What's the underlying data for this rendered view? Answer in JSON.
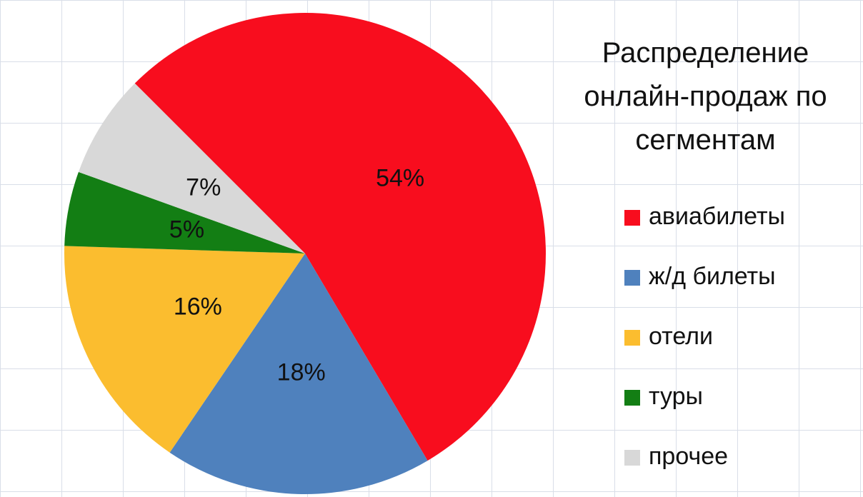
{
  "chart_data": {
    "type": "pie",
    "title": "Распределение онлайн-продаж по сегментам",
    "categories": [
      "авиабилеты",
      "ж/д билеты",
      "отели",
      "туры",
      "прочее"
    ],
    "values": [
      54,
      18,
      16,
      5,
      7
    ],
    "value_labels": [
      "54%",
      "18%",
      "16%",
      "5%",
      "7%"
    ],
    "colors": [
      "#f80d1e",
      "#4f81bd",
      "#fbbd2f",
      "#137e14",
      "#d8d8d8"
    ]
  }
}
